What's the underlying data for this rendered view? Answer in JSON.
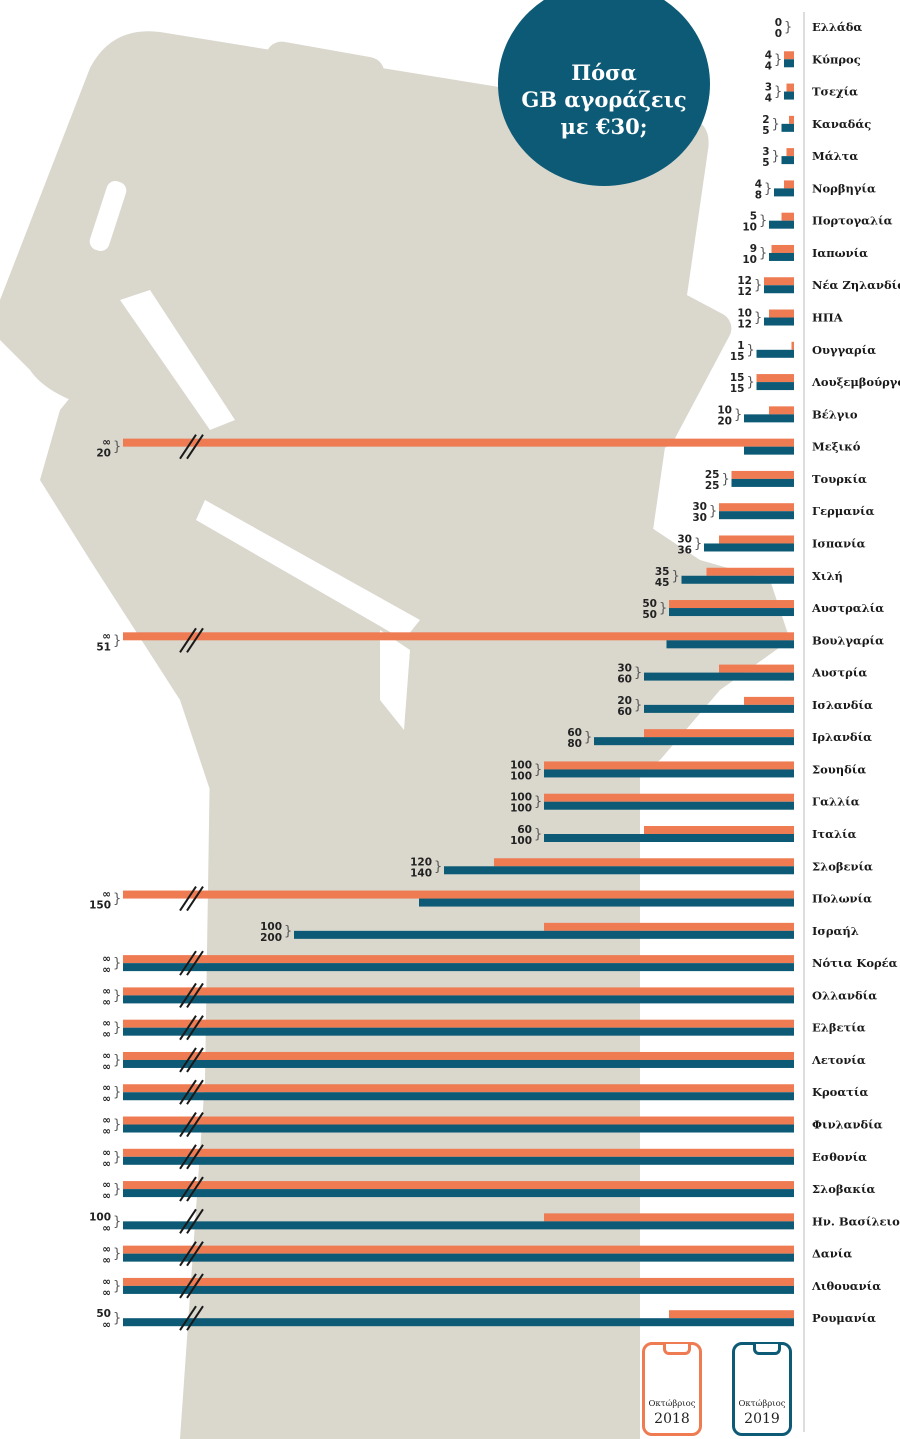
{
  "title_lines": [
    "Πόσα",
    "GB αγοράζεις",
    "με €30;"
  ],
  "legend": {
    "y2018": {
      "month": "Οκτώβριος",
      "year": "2018"
    },
    "y2019": {
      "month": "Οκτώβριος",
      "year": "2019"
    }
  },
  "colors": {
    "oct2018": "#ee7b52",
    "oct2019": "#0c5a76",
    "background_art": "#dad7cd"
  },
  "chart_data": {
    "type": "bar",
    "orientation": "horizontal",
    "title": "Πόσα GB αγοράζεις με €30;",
    "unit": "GB",
    "infinity_label": "∞",
    "series": [
      {
        "name": "Οκτώβριος 2018",
        "color": "#ee7b52"
      },
      {
        "name": "Οκτώβριος 2019",
        "color": "#0c5a76"
      }
    ],
    "rows": [
      {
        "country": "Ελλάδα",
        "v2018": 0,
        "v2019": 0,
        "l2018": "0",
        "l2019": "0"
      },
      {
        "country": "Κύπρος",
        "v2018": 4,
        "v2019": 4,
        "l2018": "4",
        "l2019": "4"
      },
      {
        "country": "Τσεχία",
        "v2018": 3,
        "v2019": 4,
        "l2018": "3",
        "l2019": "4"
      },
      {
        "country": "Καναδάς",
        "v2018": 2,
        "v2019": 5,
        "l2018": "2",
        "l2019": "5"
      },
      {
        "country": "Μάλτα",
        "v2018": 3,
        "v2019": 5,
        "l2018": "3",
        "l2019": "5"
      },
      {
        "country": "Νορβηγία",
        "v2018": 4,
        "v2019": 8,
        "l2018": "4",
        "l2019": "8"
      },
      {
        "country": "Πορτογαλία",
        "v2018": 5,
        "v2019": 10,
        "l2018": "5",
        "l2019": "10"
      },
      {
        "country": "Ιαπωνία",
        "v2018": 9,
        "v2019": 10,
        "l2018": "9",
        "l2019": "10"
      },
      {
        "country": "Νέα Ζηλανδία",
        "v2018": 12,
        "v2019": 12,
        "l2018": "12",
        "l2019": "12"
      },
      {
        "country": "ΗΠΑ",
        "v2018": 10,
        "v2019": 12,
        "l2018": "10",
        "l2019": "12"
      },
      {
        "country": "Ουγγαρία",
        "v2018": 1,
        "v2019": 15,
        "l2018": "1",
        "l2019": "15"
      },
      {
        "country": "Λουξεμβούργο",
        "v2018": 15,
        "v2019": 15,
        "l2018": "15",
        "l2019": "15"
      },
      {
        "country": "Βέλγιο",
        "v2018": 10,
        "v2019": 20,
        "l2018": "10",
        "l2019": "20"
      },
      {
        "country": "Μεξικό",
        "v2018": "inf",
        "v2019": 20,
        "l2018": "∞",
        "l2019": "20"
      },
      {
        "country": "Τουρκία",
        "v2018": 25,
        "v2019": 25,
        "l2018": "25",
        "l2019": "25"
      },
      {
        "country": "Γερμανία",
        "v2018": 30,
        "v2019": 30,
        "l2018": "30",
        "l2019": "30"
      },
      {
        "country": "Ισπανία",
        "v2018": 30,
        "v2019": 36,
        "l2018": "30",
        "l2019": "36"
      },
      {
        "country": "Χιλή",
        "v2018": 35,
        "v2019": 45,
        "l2018": "35",
        "l2019": "45"
      },
      {
        "country": "Αυστραλία",
        "v2018": 50,
        "v2019": 50,
        "l2018": "50",
        "l2019": "50"
      },
      {
        "country": "Βουλγαρία",
        "v2018": "inf",
        "v2019": 51,
        "l2018": "∞",
        "l2019": "51"
      },
      {
        "country": "Αυστρία",
        "v2018": 30,
        "v2019": 60,
        "l2018": "30",
        "l2019": "60"
      },
      {
        "country": "Ισλανδία",
        "v2018": 20,
        "v2019": 60,
        "l2018": "20",
        "l2019": "60"
      },
      {
        "country": "Ιρλανδία",
        "v2018": 60,
        "v2019": 80,
        "l2018": "60",
        "l2019": "80"
      },
      {
        "country": "Σουηδία",
        "v2018": 100,
        "v2019": 100,
        "l2018": "100",
        "l2019": "100"
      },
      {
        "country": "Γαλλία",
        "v2018": 100,
        "v2019": 100,
        "l2018": "100",
        "l2019": "100"
      },
      {
        "country": "Ιταλία",
        "v2018": 60,
        "v2019": 100,
        "l2018": "60",
        "l2019": "100"
      },
      {
        "country": "Σλοβενία",
        "v2018": 120,
        "v2019": 140,
        "l2018": "120",
        "l2019": "140"
      },
      {
        "country": "Πολωνία",
        "v2018": "inf",
        "v2019": 150,
        "l2018": "∞",
        "l2019": "150"
      },
      {
        "country": "Ισραήλ",
        "v2018": 100,
        "v2019": 200,
        "l2018": "100",
        "l2019": "200"
      },
      {
        "country": "Νότια Κορέα",
        "v2018": "inf",
        "v2019": "inf",
        "l2018": "∞",
        "l2019": "∞"
      },
      {
        "country": "Ολλανδία",
        "v2018": "inf",
        "v2019": "inf",
        "l2018": "∞",
        "l2019": "∞"
      },
      {
        "country": "Ελβετία",
        "v2018": "inf",
        "v2019": "inf",
        "l2018": "∞",
        "l2019": "∞"
      },
      {
        "country": "Λετονία",
        "v2018": "inf",
        "v2019": "inf",
        "l2018": "∞",
        "l2019": "∞"
      },
      {
        "country": "Κροατία",
        "v2018": "inf",
        "v2019": "inf",
        "l2018": "∞",
        "l2019": "∞"
      },
      {
        "country": "Φινλανδία",
        "v2018": "inf",
        "v2019": "inf",
        "l2018": "∞",
        "l2019": "∞"
      },
      {
        "country": "Εσθονία",
        "v2018": "inf",
        "v2019": "inf",
        "l2018": "∞",
        "l2019": "∞"
      },
      {
        "country": "Σλοβακία",
        "v2018": "inf",
        "v2019": "inf",
        "l2018": "∞",
        "l2019": "∞"
      },
      {
        "country": "Ην. Βασίλειο",
        "v2018": 100,
        "v2019": "inf",
        "l2018": "100",
        "l2019": "∞"
      },
      {
        "country": "Δανία",
        "v2018": "inf",
        "v2019": "inf",
        "l2018": "∞",
        "l2019": "∞"
      },
      {
        "country": "Λιθουανία",
        "v2018": "inf",
        "v2019": "inf",
        "l2018": "∞",
        "l2019": "∞"
      },
      {
        "country": "Ρουμανία",
        "v2018": 50,
        "v2019": "inf",
        "l2018": "50",
        "l2019": "∞"
      }
    ]
  }
}
